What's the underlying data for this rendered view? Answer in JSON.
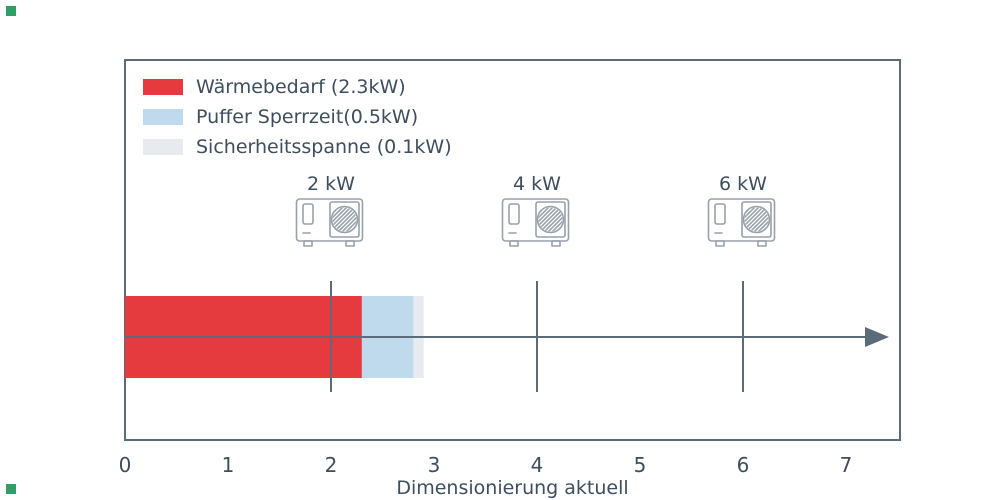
{
  "chart_data": {
    "type": "bar",
    "orientation": "horizontal",
    "title": "",
    "xlabel": "Dimensionierung aktuell",
    "ylabel": "",
    "xlim": [
      0,
      7.5
    ],
    "xticks": [
      "0",
      "1",
      "2",
      "3",
      "4",
      "5",
      "6",
      "7"
    ],
    "grid": false,
    "legend_position": "upper-left",
    "bar_segments": [
      {
        "name": "waermebedarf",
        "legend_label": "Wärmebedarf (2.3kW)",
        "value_kw": 2.3,
        "color": "#e63b3e"
      },
      {
        "name": "puffer-sperrzeit",
        "legend_label": "Puffer Sperrzeit(0.5kW)",
        "value_kw": 0.5,
        "color": "#bedaec"
      },
      {
        "name": "sicherheitsspanne",
        "legend_label": "Sicherheitsspanne (0.1kW)",
        "value_kw": 0.1,
        "color": "#e7eaee"
      }
    ],
    "heat_pump_markers": [
      {
        "position_kw": 2,
        "label": "2 kW"
      },
      {
        "position_kw": 4,
        "label": "4 kW"
      },
      {
        "position_kw": 6,
        "label": "6 kW"
      }
    ]
  },
  "style": {
    "frame_color": "#5c6b79",
    "axis_color": "#5c6b79",
    "marker_line_color": "#5c6b79",
    "text_color": "#3e4e5d",
    "icon_color": "#98a1aa",
    "corner_marker_color": "#2f9e68",
    "background": "#ffffff"
  }
}
